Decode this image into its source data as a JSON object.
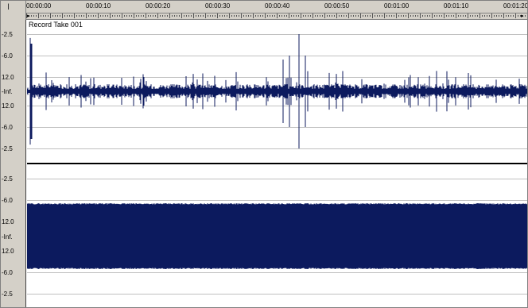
{
  "ruler": {
    "corner_icon": "cursor-i-icon",
    "time_labels": [
      "00:00:00",
      "00:00:10",
      "00:00:20",
      "00:00:30",
      "00:00:40",
      "00:00:50",
      "00:01:00",
      "00:01:10",
      "00:01:20"
    ]
  },
  "track1": {
    "name": "Record Take 001",
    "scale": [
      "-2.5",
      "-6.0",
      "12.0",
      "-Inf.",
      "12.0",
      "-6.0",
      "-2.5"
    ],
    "wave_color": "#0c1a5e"
  },
  "track2": {
    "name": "",
    "scale": [
      "-2.5",
      "-6.0",
      "12.0",
      "-Inf.",
      "12.0",
      "-6.0",
      "-2.5"
    ],
    "wave_color": "#0c1a5e"
  }
}
